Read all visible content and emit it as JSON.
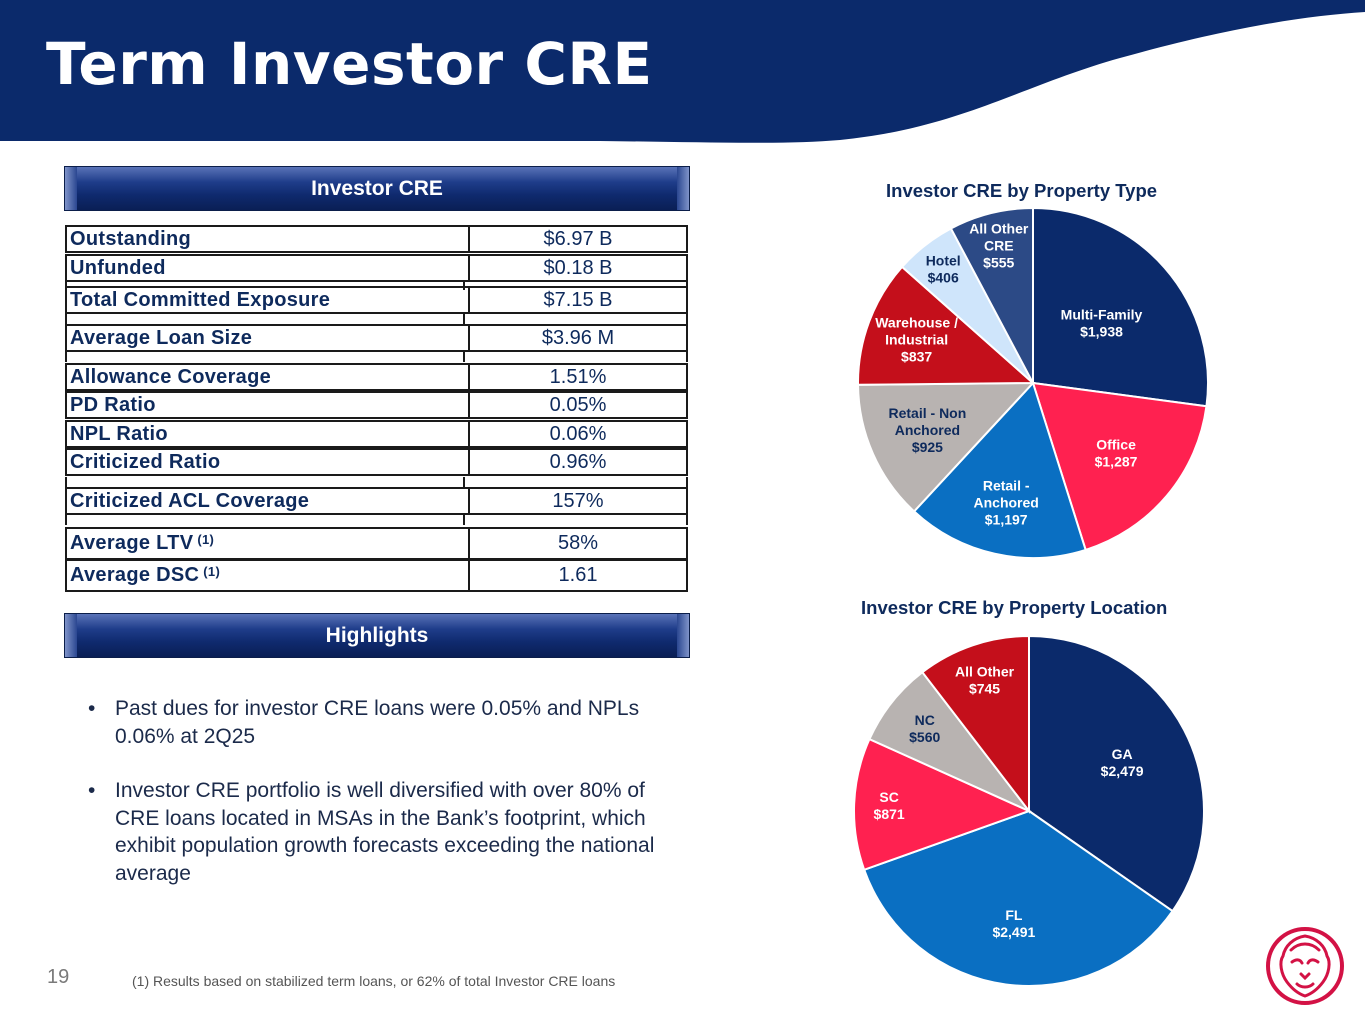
{
  "slide": {
    "title": "Term Investor CRE",
    "page_number": "19",
    "footnote": "(1) Results based on stabilized term loans, or 62% of total Investor CRE loans",
    "colors": {
      "navy": "#0b2a6b",
      "red": "#c40f1b",
      "pink": "#ff2150",
      "blue": "#0a6fc2",
      "gray": "#b8b3b1",
      "lightblue": "#cfe5fb",
      "slate": "#2c4a86"
    }
  },
  "investor_table": {
    "header": "Investor CRE",
    "rows": [
      {
        "label": "Outstanding",
        "value": "$6.97 B"
      },
      {
        "label": "Unfunded",
        "value": "$0.18 B"
      },
      {
        "label": "Total Committed Exposure",
        "value": "$7.15 B"
      },
      {
        "label": "Average Loan Size",
        "value": "$3.96 M"
      },
      {
        "label": "Allowance Coverage",
        "value": "1.51%"
      },
      {
        "label": "PD Ratio",
        "value": "0.05%"
      },
      {
        "label": "NPL Ratio",
        "value": "0.06%"
      },
      {
        "label": "Criticized Ratio",
        "value": "0.96%"
      },
      {
        "label": "Criticized ACL Coverage",
        "value": "157%"
      },
      {
        "label": "Average LTV",
        "sup": "(1)",
        "value": "58%"
      },
      {
        "label": "Average DSC",
        "sup": "(1)",
        "value": "1.61"
      }
    ]
  },
  "highlights": {
    "header": "Highlights",
    "bullet_glyph": "•",
    "items": [
      "Past dues for investor CRE loans were 0.05% and NPLs 0.06% at 2Q25",
      "Investor CRE portfolio is well diversified with over 80% of CRE loans located in MSAs in the Bank’s footprint, which exhibit population growth forecasts exceeding the national average"
    ]
  },
  "chart_data": [
    {
      "type": "pie",
      "title": "Investor CRE by Property Type",
      "slices": [
        {
          "name": "Multi-Family",
          "value": 1938,
          "label": [
            "Multi-Family",
            "$1,938"
          ],
          "color": "#0b2a6b",
          "text_color": "#ffffff"
        },
        {
          "name": "Office",
          "value": 1287,
          "label": [
            "Office",
            "$1,287"
          ],
          "color": "#ff2150",
          "text_color": "#ffffff"
        },
        {
          "name": "Retail - Anchored",
          "value": 1197,
          "label": [
            "Retail -",
            "Anchored",
            "$1,197"
          ],
          "color": "#0a6fc2",
          "text_color": "#ffffff"
        },
        {
          "name": "Retail - Non Anchored",
          "value": 925,
          "label": [
            "Retail - Non",
            "Anchored",
            "$925"
          ],
          "color": "#b8b3b1",
          "text_color": "#0e2a5c"
        },
        {
          "name": "Warehouse / Industrial",
          "value": 837,
          "label": [
            "Warehouse /",
            "Industrial",
            "$837"
          ],
          "color": "#c40f1b",
          "text_color": "#ffffff"
        },
        {
          "name": "Hotel",
          "value": 406,
          "label": [
            "Hotel",
            "$406"
          ],
          "color": "#cfe5fb",
          "text_color": "#0e2a5c"
        },
        {
          "name": "All Other CRE",
          "value": 555,
          "label": [
            "All Other",
            "CRE",
            "$555"
          ],
          "color": "#2c4a86",
          "text_color": "#ffffff"
        }
      ]
    },
    {
      "type": "pie",
      "title": "Investor CRE by Property Location",
      "slices": [
        {
          "name": "GA",
          "value": 2479,
          "label": [
            "GA",
            "$2,479"
          ],
          "color": "#0b2a6b",
          "text_color": "#ffffff"
        },
        {
          "name": "FL",
          "value": 2491,
          "label": [
            "FL",
            "$2,491"
          ],
          "color": "#0a6fc2",
          "text_color": "#ffffff"
        },
        {
          "name": "SC",
          "value": 871,
          "label": [
            "SC",
            "$871"
          ],
          "color": "#ff2150",
          "text_color": "#ffffff"
        },
        {
          "name": "NC",
          "value": 560,
          "label": [
            "NC",
            "$560"
          ],
          "color": "#b8b3b1",
          "text_color": "#0e2a5c"
        },
        {
          "name": "All Other",
          "value": 745,
          "label": [
            "All Other",
            "$745"
          ],
          "color": "#c40f1b",
          "text_color": "#ffffff"
        }
      ]
    }
  ]
}
